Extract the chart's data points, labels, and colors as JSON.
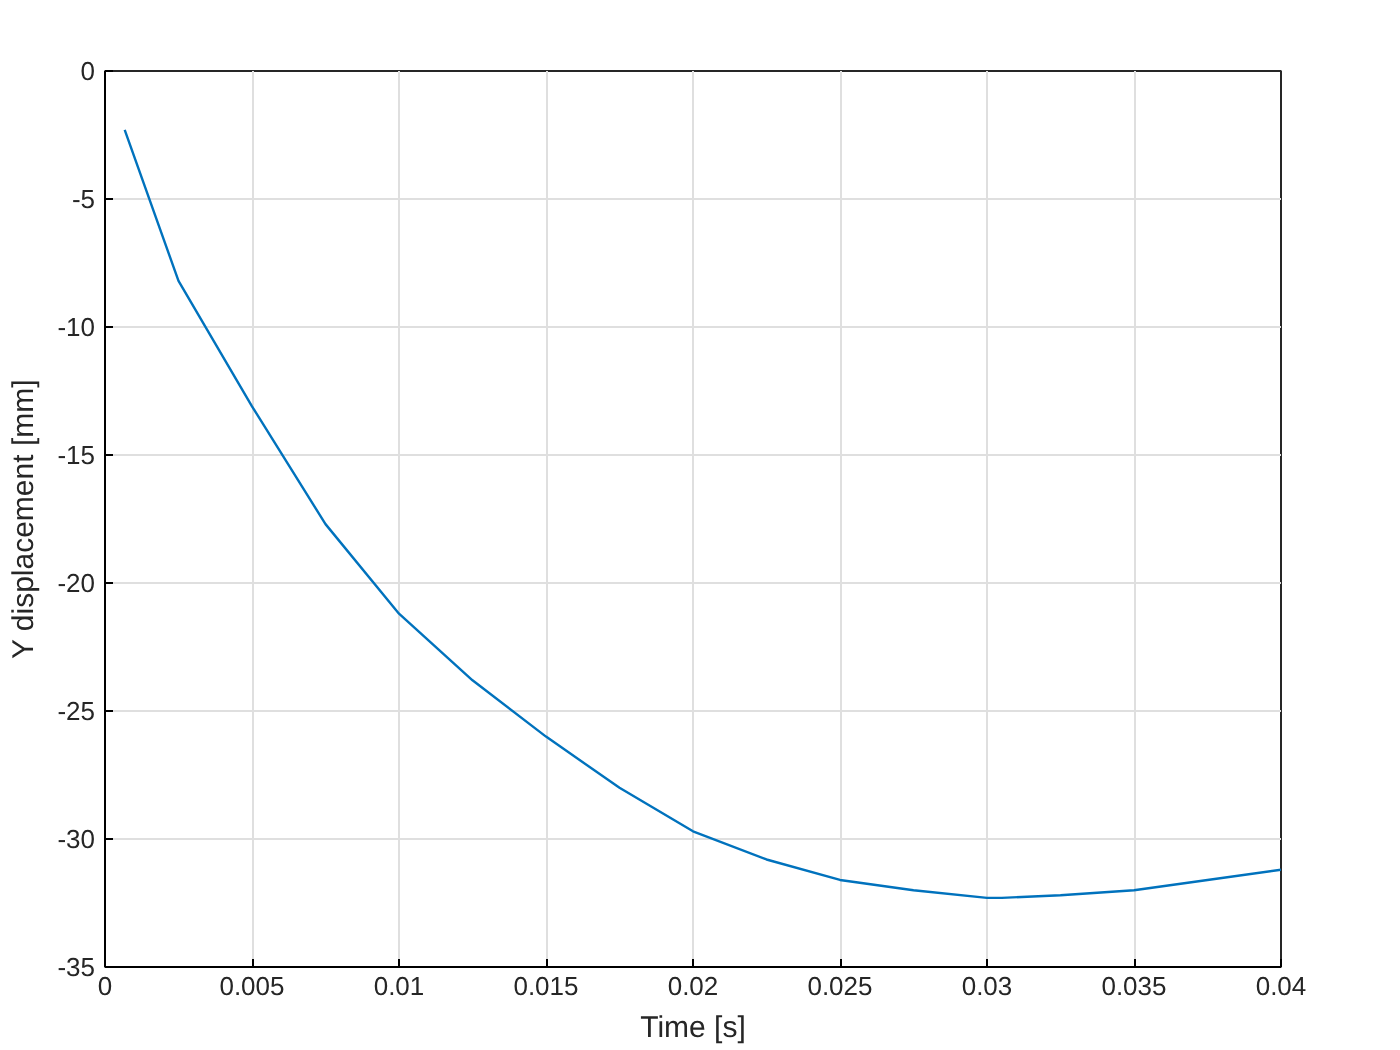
{
  "chart_data": {
    "type": "line",
    "xlabel": "Time [s]",
    "ylabel": "Y displacement [mm]",
    "x": [
      0.00067,
      0.0025,
      0.005,
      0.0075,
      0.01,
      0.0125,
      0.015,
      0.0175,
      0.02,
      0.0225,
      0.025,
      0.0275,
      0.03,
      0.0305,
      0.0325,
      0.035,
      0.0375,
      0.04
    ],
    "series": [
      {
        "color": "#0072bd",
        "values": [
          -2.3,
          -8.2,
          -13.1,
          -17.7,
          -21.2,
          -23.8,
          -26.0,
          -28.0,
          -29.7,
          -30.8,
          -31.6,
          -32.0,
          -32.3,
          -32.3,
          -32.2,
          -32.0,
          -31.6,
          -31.2
        ]
      }
    ],
    "xlim": [
      0,
      0.04
    ],
    "ylim": [
      -35,
      0
    ],
    "xticks": [
      0,
      0.005,
      0.01,
      0.015,
      0.02,
      0.025,
      0.03,
      0.035,
      0.04
    ],
    "yticks": [
      -35,
      -30,
      -25,
      -20,
      -15,
      -10,
      -5,
      0
    ],
    "grid": true,
    "line_style": "solid",
    "marker": "none"
  }
}
